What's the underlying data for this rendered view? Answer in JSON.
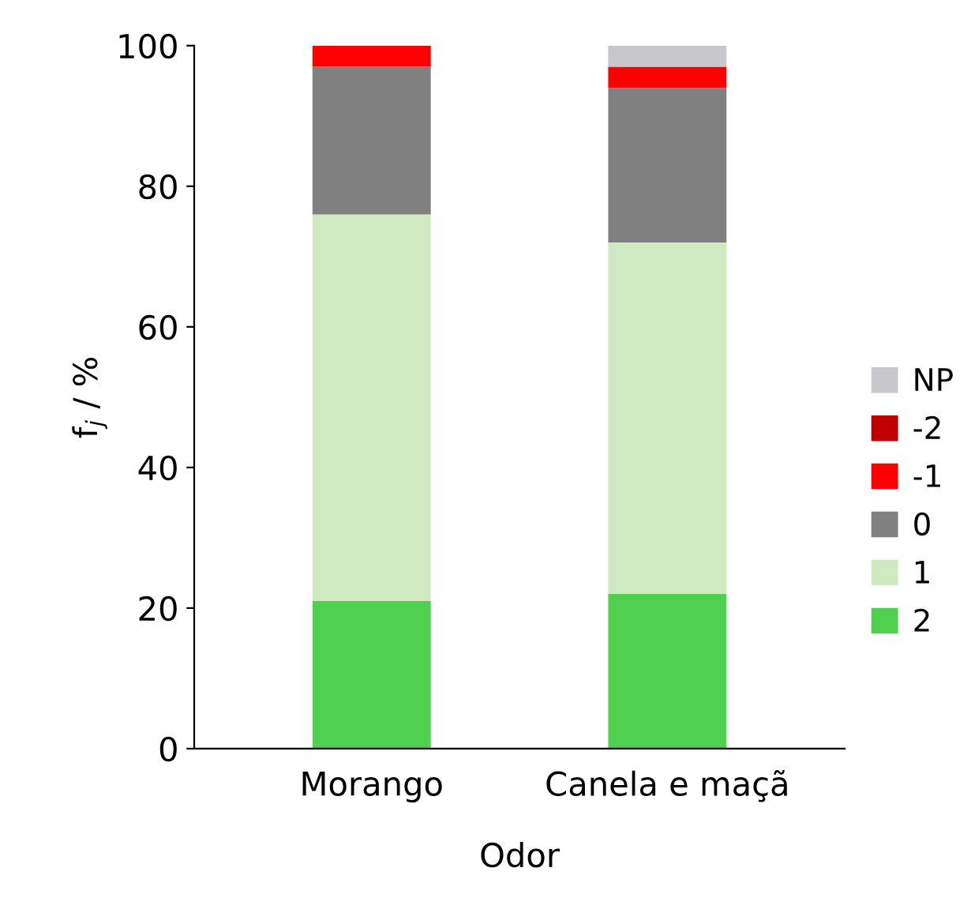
{
  "chart_data": {
    "type": "bar",
    "stacked": true,
    "xlabel": "Odor",
    "ylabel": "f$_{j}$ / %",
    "categories": [
      "Morango",
      "Canela e maçã"
    ],
    "series": [
      {
        "name": "2",
        "color": "#4fd14f",
        "values": [
          21,
          22
        ]
      },
      {
        "name": "1",
        "color": "#cfeac1",
        "values": [
          55,
          50
        ]
      },
      {
        "name": "0",
        "color": "#808080",
        "values": [
          21,
          22
        ]
      },
      {
        "name": "-1",
        "color": "#ff0000",
        "values": [
          3,
          3
        ]
      },
      {
        "name": "-2",
        "color": "#c00000",
        "values": [
          0,
          0
        ]
      },
      {
        "name": "NP",
        "color": "#c8c8cc",
        "values": [
          0,
          3
        ]
      }
    ],
    "ylim": [
      0,
      100
    ],
    "yticks": [
      0,
      20,
      40,
      60,
      80,
      100
    ],
    "grid": false,
    "legend": "right"
  }
}
